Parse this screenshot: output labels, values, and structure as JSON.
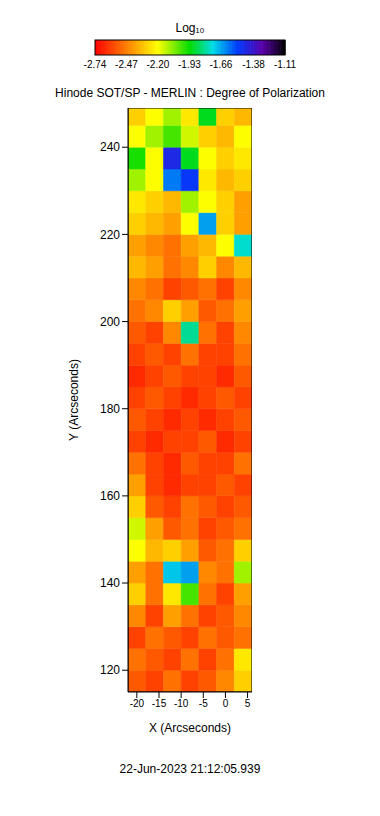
{
  "chart_data": {
    "type": "heatmap",
    "title": "Hinode SOT/SP - MERLIN : Degree of Polarization",
    "x_label": "X (Arcseconds)",
    "y_label": "Y (Arcseconds)",
    "annotation": "22-Jun-2023 21:12:05.939",
    "xlim": [
      -22,
      6
    ],
    "xticks": [
      -20,
      -15,
      -10,
      -5,
      0,
      5
    ],
    "ylim": [
      115,
      249
    ],
    "yticks": [
      120,
      140,
      160,
      180,
      200,
      220,
      240
    ],
    "grid": false,
    "x_bins": [
      -22,
      -18,
      -14,
      -10,
      -6,
      -2,
      2,
      6
    ],
    "y_bins": [
      115,
      120,
      125,
      130,
      135,
      140,
      145,
      150,
      155,
      160,
      165,
      170,
      175,
      180,
      185,
      190,
      195,
      200,
      205,
      210,
      215,
      220,
      225,
      230,
      235,
      240,
      245,
      249
    ],
    "cells": [
      [
        -2.55,
        -2.6,
        -2.5,
        -2.6,
        -2.55,
        -2.45,
        -2.3
      ],
      [
        -2.5,
        -2.55,
        -2.6,
        -2.5,
        -2.6,
        -2.5,
        -2.25
      ],
      [
        -2.6,
        -2.5,
        -2.55,
        -2.6,
        -2.5,
        -2.55,
        -2.5
      ],
      [
        -2.45,
        -2.6,
        -2.4,
        -2.5,
        -2.6,
        -2.55,
        -2.45
      ],
      [
        -2.3,
        -2.5,
        -2.25,
        -2.0,
        -2.5,
        -2.6,
        -2.4
      ],
      [
        -2.4,
        -2.5,
        -1.7,
        -1.65,
        -2.45,
        -2.5,
        -2.1
      ],
      [
        -2.2,
        -2.35,
        -2.3,
        -2.4,
        -2.55,
        -2.5,
        -2.3
      ],
      [
        -2.15,
        -2.4,
        -2.55,
        -2.5,
        -2.6,
        -2.55,
        -2.5
      ],
      [
        -2.3,
        -2.55,
        -2.6,
        -2.5,
        -2.55,
        -2.6,
        -2.55
      ],
      [
        -2.4,
        -2.6,
        -2.65,
        -2.6,
        -2.6,
        -2.55,
        -2.6
      ],
      [
        -2.5,
        -2.6,
        -2.65,
        -2.55,
        -2.6,
        -2.6,
        -2.5
      ],
      [
        -2.6,
        -2.65,
        -2.6,
        -2.6,
        -2.55,
        -2.65,
        -2.6
      ],
      [
        -2.55,
        -2.6,
        -2.65,
        -2.6,
        -2.65,
        -2.6,
        -2.55
      ],
      [
        -2.6,
        -2.55,
        -2.6,
        -2.65,
        -2.6,
        -2.55,
        -2.6
      ],
      [
        -2.65,
        -2.6,
        -2.55,
        -2.6,
        -2.6,
        -2.65,
        -2.55
      ],
      [
        -2.6,
        -2.55,
        -2.6,
        -2.5,
        -2.6,
        -2.6,
        -2.5
      ],
      [
        -2.55,
        -2.6,
        -2.45,
        -1.8,
        -2.5,
        -2.6,
        -2.45
      ],
      [
        -2.5,
        -2.45,
        -2.3,
        -2.4,
        -2.55,
        -2.5,
        -2.4
      ],
      [
        -2.45,
        -2.5,
        -2.6,
        -2.55,
        -2.5,
        -2.6,
        -2.45
      ],
      [
        -2.35,
        -2.4,
        -2.5,
        -2.45,
        -2.3,
        -2.45,
        -2.35
      ],
      [
        -2.4,
        -2.45,
        -2.5,
        -2.4,
        -2.35,
        -2.2,
        -1.75
      ],
      [
        -2.3,
        -2.35,
        -2.4,
        -2.2,
        -1.65,
        -2.3,
        -2.4
      ],
      [
        -2.25,
        -2.3,
        -2.35,
        -2.1,
        -2.2,
        -2.3,
        -2.4
      ],
      [
        -2.1,
        -2.2,
        -1.6,
        -1.5,
        -2.25,
        -2.35,
        -2.3
      ],
      [
        -1.95,
        -2.2,
        -1.45,
        -1.9,
        -2.2,
        -2.3,
        -2.25
      ],
      [
        -2.2,
        -2.1,
        -2.0,
        -2.15,
        -2.3,
        -2.35,
        -2.2
      ],
      [
        -2.3,
        -2.2,
        -2.1,
        -2.25,
        -1.9,
        -2.3,
        -2.35
      ]
    ],
    "colorbar": {
      "label": "Log₁₀",
      "range": [
        -2.74,
        -1.11
      ],
      "ticks": [
        -2.74,
        -2.47,
        {
          "value": -2.2,
          "label": "-2.20"
        },
        -1.93,
        -1.66,
        -1.38,
        -1.11
      ]
    }
  }
}
